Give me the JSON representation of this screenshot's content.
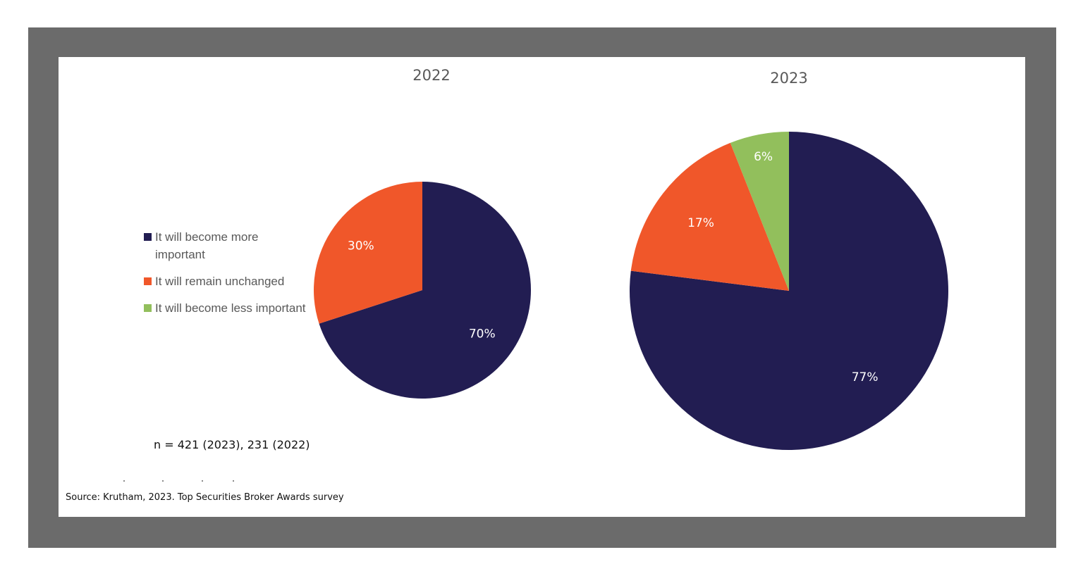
{
  "chart_data": [
    {
      "type": "pie",
      "title": "2022",
      "categories": [
        "It will become more important",
        "It will remain unchanged",
        "It will become less important"
      ],
      "values": [
        70,
        30,
        0
      ],
      "labels": [
        "70%",
        "30%",
        ""
      ],
      "colors": [
        "#221d52",
        "#f0572a",
        "#92bf5c"
      ]
    },
    {
      "type": "pie",
      "title": "2023",
      "categories": [
        "It will become more important",
        "It will remain unchanged",
        "It will become less important"
      ],
      "values": [
        77,
        17,
        6
      ],
      "labels": [
        "77%",
        "17%",
        "6%"
      ],
      "colors": [
        "#221d52",
        "#f0572a",
        "#92bf5c"
      ]
    }
  ],
  "legend": {
    "placement": "left",
    "items": [
      {
        "label": "It will become more important",
        "color": "#221d52"
      },
      {
        "label": "It will remain unchanged",
        "color": "#f0572a"
      },
      {
        "label": "It will become less important",
        "color": "#92bf5c"
      }
    ]
  },
  "notes": {
    "sample": "n = 421 (2023), 231 (2022)",
    "source": "Source: Krutham, 2023. Top Securities Broker Awards survey"
  }
}
